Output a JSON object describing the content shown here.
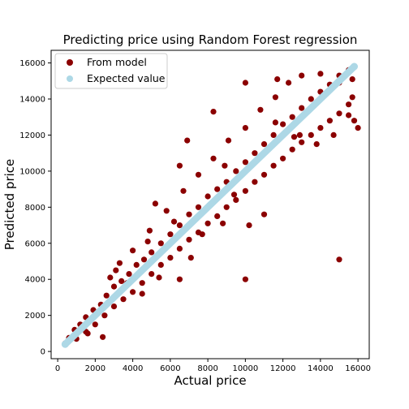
{
  "chart_data": {
    "type": "scatter",
    "title": "Predicting price using Random Forest regression",
    "xlabel": "Actual price",
    "ylabel": "Predicted price",
    "xlim": [
      -350,
      16600
    ],
    "ylim": [
      -400,
      16700
    ],
    "xticks": [
      "0",
      "2000",
      "4000",
      "6000",
      "8000",
      "10000",
      "12000",
      "14000",
      "16000"
    ],
    "yticks": [
      "0",
      "2000",
      "4000",
      "6000",
      "8000",
      "10000",
      "12000",
      "14000",
      "16000"
    ],
    "grid": false,
    "legend_position": "top-left",
    "series": [
      {
        "name": "From model",
        "color": "#8b0000",
        "marker": "circle",
        "points": [
          [
            400,
            450
          ],
          [
            600,
            750
          ],
          [
            900,
            1200
          ],
          [
            1200,
            1500
          ],
          [
            1500,
            1900
          ],
          [
            1900,
            2300
          ],
          [
            2300,
            2600
          ],
          [
            2600,
            3100
          ],
          [
            3000,
            3600
          ],
          [
            3400,
            3900
          ],
          [
            3800,
            4300
          ],
          [
            4200,
            4800
          ],
          [
            4600,
            5100
          ],
          [
            5000,
            5500
          ],
          [
            5500,
            6000
          ],
          [
            6000,
            6500
          ],
          [
            6500,
            7000
          ],
          [
            7000,
            7600
          ],
          [
            7500,
            8000
          ],
          [
            8000,
            8600
          ],
          [
            8500,
            9000
          ],
          [
            9000,
            9400
          ],
          [
            9500,
            10000
          ],
          [
            10000,
            10500
          ],
          [
            10500,
            11000
          ],
          [
            11000,
            11500
          ],
          [
            11500,
            12000
          ],
          [
            12000,
            12600
          ],
          [
            12500,
            13000
          ],
          [
            13000,
            13500
          ],
          [
            13500,
            14000
          ],
          [
            14000,
            14400
          ],
          [
            14500,
            14800
          ],
          [
            15000,
            15300
          ],
          [
            15500,
            15600
          ],
          [
            1000,
            700
          ],
          [
            1500,
            1100
          ],
          [
            2000,
            1500
          ],
          [
            2500,
            2000
          ],
          [
            3000,
            2500
          ],
          [
            3500,
            2900
          ],
          [
            4000,
            3300
          ],
          [
            4500,
            3800
          ],
          [
            5000,
            4300
          ],
          [
            5500,
            4800
          ],
          [
            6000,
            5200
          ],
          [
            6500,
            5700
          ],
          [
            7000,
            6200
          ],
          [
            7500,
            6600
          ],
          [
            8000,
            7100
          ],
          [
            8500,
            7500
          ],
          [
            9000,
            8000
          ],
          [
            9500,
            8400
          ],
          [
            10000,
            8900
          ],
          [
            10500,
            9400
          ],
          [
            11000,
            9800
          ],
          [
            11500,
            10300
          ],
          [
            12000,
            10700
          ],
          [
            12500,
            11200
          ],
          [
            13000,
            11600
          ],
          [
            13500,
            12000
          ],
          [
            14000,
            12400
          ],
          [
            14500,
            12800
          ],
          [
            15000,
            13200
          ],
          [
            15500,
            13700
          ],
          [
            3100,
            4500
          ],
          [
            4000,
            5600
          ],
          [
            4900,
            6700
          ],
          [
            5800,
            7800
          ],
          [
            6700,
            8900
          ],
          [
            7500,
            9800
          ],
          [
            8300,
            10700
          ],
          [
            9100,
            11700
          ],
          [
            10000,
            12400
          ],
          [
            10800,
            13400
          ],
          [
            11600,
            14100
          ],
          [
            12300,
            14900
          ],
          [
            5200,
            8200
          ],
          [
            6500,
            10300
          ],
          [
            6900,
            11700
          ],
          [
            8300,
            13300
          ],
          [
            10000,
            14900
          ],
          [
            11700,
            15100
          ],
          [
            13000,
            15300
          ],
          [
            14000,
            15400
          ],
          [
            15000,
            14900
          ],
          [
            15700,
            15100
          ],
          [
            1800,
            1800
          ],
          [
            2400,
            800
          ],
          [
            1600,
            1000
          ],
          [
            6500,
            4000
          ],
          [
            7100,
            5200
          ],
          [
            8800,
            7100
          ],
          [
            9400,
            8700
          ],
          [
            10200,
            7000
          ],
          [
            11000,
            7600
          ],
          [
            12600,
            11900
          ],
          [
            13800,
            11500
          ],
          [
            14700,
            12000
          ],
          [
            15800,
            12800
          ],
          [
            15700,
            14100
          ],
          [
            15500,
            13100
          ],
          [
            16000,
            12400
          ],
          [
            3700,
            3800
          ],
          [
            4500,
            3200
          ],
          [
            5400,
            4100
          ],
          [
            7700,
            6500
          ],
          [
            8900,
            10300
          ],
          [
            11600,
            12700
          ],
          [
            12900,
            12000
          ],
          [
            6200,
            7200
          ],
          [
            2800,
            4100
          ],
          [
            3300,
            4900
          ],
          [
            4800,
            6100
          ],
          [
            10000,
            4000
          ],
          [
            15000,
            5100
          ]
        ]
      },
      {
        "name": "Expected value",
        "color": "#add8e6",
        "marker": "circle",
        "points": [
          [
            400,
            400
          ],
          [
            15800,
            15800
          ]
        ]
      }
    ],
    "legend": [
      "From model",
      "Expected value"
    ]
  }
}
